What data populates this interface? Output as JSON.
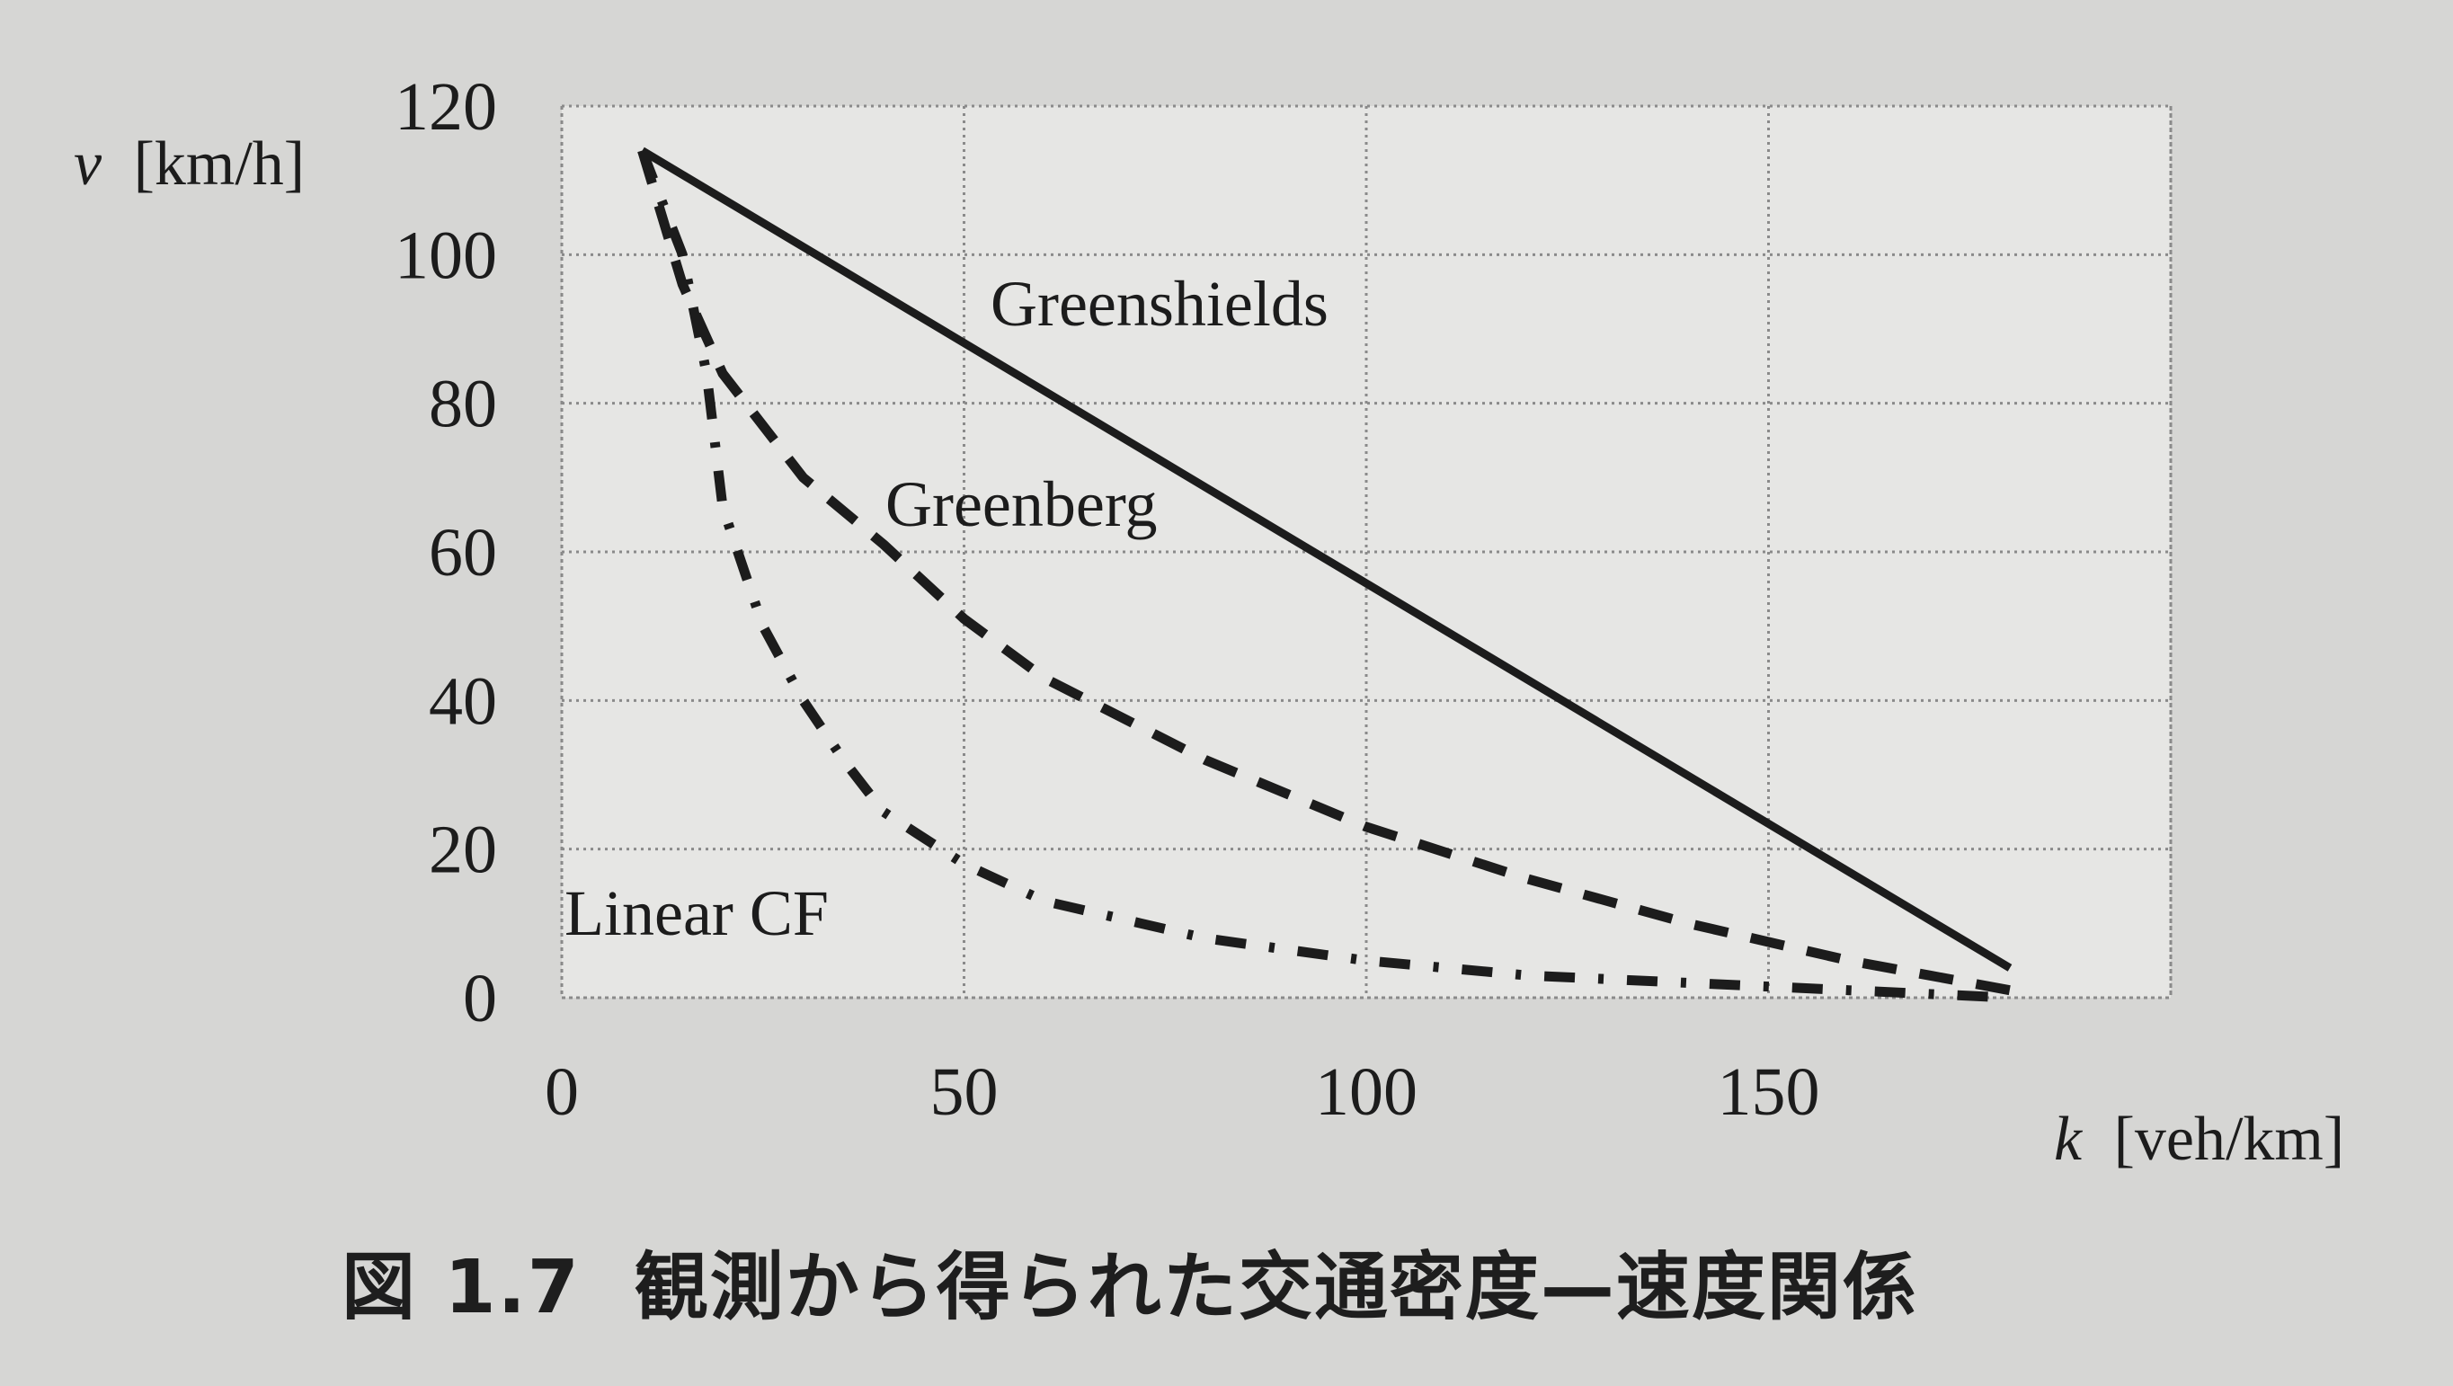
{
  "caption": {
    "figure_number": "図 1.7",
    "text": "観測から得られた交通密度—速度関係"
  },
  "colors": {
    "background": "#d6d6d4",
    "plot_background": "#e6e6e4",
    "grid": "#8a8a8a",
    "ink": "#1c1c1c"
  },
  "chart_data": {
    "type": "line",
    "title": "",
    "xlabel_var": "k",
    "xlabel_unit": "[veh/km]",
    "ylabel_var": "v",
    "ylabel_unit": "[km/h]",
    "xlim": [
      0,
      200
    ],
    "ylim": [
      0,
      120
    ],
    "xticks": [
      0,
      50,
      100,
      150
    ],
    "yticks": [
      0,
      20,
      40,
      60,
      80,
      100,
      120
    ],
    "grid": true,
    "legend": "none",
    "series": [
      {
        "name": "Greenshields",
        "style": "solid",
        "x": [
          10,
          180
        ],
        "y": [
          114,
          4
        ]
      },
      {
        "name": "Greenberg",
        "style": "dashed",
        "x": [
          10,
          15,
          20,
          30,
          40,
          50,
          60,
          80,
          100,
          120,
          140,
          160,
          170,
          180
        ],
        "y": [
          114,
          96,
          84,
          70,
          61,
          51,
          43,
          32,
          23,
          16,
          10,
          5,
          3,
          1
        ]
      },
      {
        "name": "Linear CF",
        "style": "dashdot",
        "x": [
          10,
          15,
          18,
          20,
          25,
          30,
          35,
          40,
          50,
          60,
          80,
          100,
          120,
          140,
          160,
          180
        ],
        "y": [
          114,
          100,
          84,
          66,
          50,
          40,
          32,
          25,
          18,
          13,
          8,
          5,
          3,
          2,
          1,
          0
        ]
      }
    ]
  }
}
